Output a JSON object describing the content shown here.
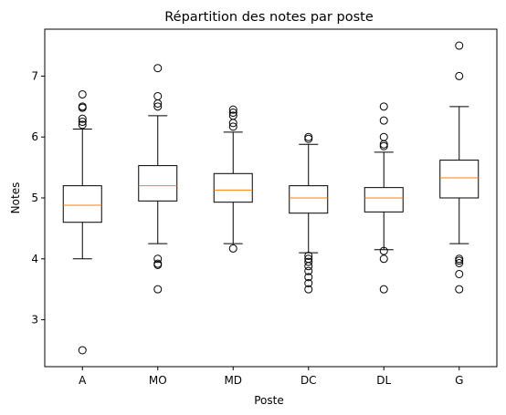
{
  "chart_data": {
    "type": "box",
    "title": "Répartition des notes par poste",
    "xlabel": "Poste",
    "ylabel": "Notes",
    "ylim": [
      2.23,
      7.77
    ],
    "yticks": [
      3,
      4,
      5,
      6,
      7
    ],
    "grid": false,
    "categories": [
      "A",
      "MO",
      "MD",
      "DC",
      "DL",
      "G"
    ],
    "boxes": [
      {
        "category": "A",
        "whislo": 4.0,
        "q1": 4.6,
        "med": 4.88,
        "q3": 5.2,
        "whishi": 6.13,
        "fliers": [
          6.2,
          6.25,
          6.3,
          6.48,
          6.5,
          6.7,
          2.5
        ]
      },
      {
        "category": "MO",
        "whislo": 4.25,
        "q1": 4.95,
        "med": 5.2,
        "q3": 5.53,
        "whishi": 6.35,
        "fliers": [
          6.5,
          6.55,
          6.67,
          7.13,
          4.0,
          3.92,
          3.9,
          3.5
        ]
      },
      {
        "category": "MD",
        "whislo": 4.25,
        "q1": 4.93,
        "med": 5.13,
        "q3": 5.4,
        "whishi": 6.08,
        "fliers": [
          6.17,
          6.23,
          6.35,
          6.4,
          6.45,
          4.17
        ]
      },
      {
        "category": "DC",
        "whislo": 4.1,
        "q1": 4.75,
        "med": 5.0,
        "q3": 5.2,
        "whishi": 5.88,
        "fliers": [
          5.97,
          6.0,
          4.05,
          4.0,
          3.95,
          3.88,
          3.8,
          3.7,
          3.6,
          3.5
        ]
      },
      {
        "category": "DL",
        "whislo": 4.15,
        "q1": 4.77,
        "med": 5.0,
        "q3": 5.17,
        "whishi": 5.75,
        "fliers": [
          5.85,
          5.88,
          6.0,
          6.27,
          6.5,
          4.13,
          4.0,
          3.5
        ]
      },
      {
        "category": "G",
        "whislo": 4.25,
        "q1": 5.0,
        "med": 5.33,
        "q3": 5.62,
        "whishi": 6.5,
        "fliers": [
          7.0,
          7.5,
          4.0,
          3.97,
          3.93,
          3.75,
          3.5
        ]
      }
    ],
    "colors": {
      "box": "#000000",
      "median": "#ff7f0e",
      "flier": "#000000",
      "background": "#ffffff"
    }
  }
}
